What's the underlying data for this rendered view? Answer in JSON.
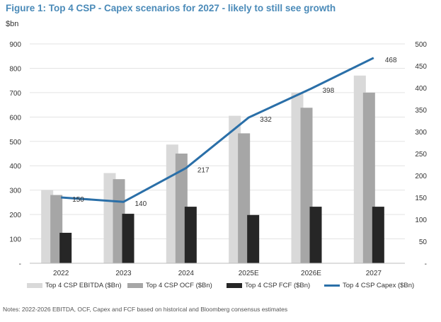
{
  "figure": {
    "title": "Figure 1: Top 4 CSP - Capex scenarios for 2027 - likely to still see growth",
    "unit_label": "$bn",
    "notes": "Notes: 2022-2026 EBITDA, OCF, Capex and FCF based on historical and Bloomberg consensus estimates"
  },
  "chart_data": {
    "type": "bar",
    "categories": [
      "2022",
      "2023",
      "2024",
      "2025E",
      "2026E",
      "2027"
    ],
    "series": [
      {
        "name": "Top 4 CSP EBITDA ($Bn)",
        "type": "bar",
        "axis": "left",
        "color": "#d9d9d9",
        "values": [
          300,
          370,
          487,
          605,
          700,
          770
        ]
      },
      {
        "name": "Top 4 CSP OCF ($Bn)",
        "type": "bar",
        "axis": "left",
        "color": "#a6a6a6",
        "values": [
          280,
          345,
          450,
          533,
          638,
          700
        ]
      },
      {
        "name": "Top 4 CSP FCF ($Bn)",
        "type": "bar",
        "axis": "left",
        "color": "#262626",
        "values": [
          125,
          203,
          232,
          198,
          232,
          232
        ]
      },
      {
        "name": "Top 4 CSP Capex ($Bn)",
        "type": "line",
        "axis": "right",
        "color": "#2a6fa8",
        "values": [
          150,
          140,
          217,
          332,
          398,
          468
        ]
      }
    ],
    "y_left": {
      "min": 0,
      "max": 900,
      "ticks": [
        0,
        100,
        200,
        300,
        400,
        500,
        600,
        700,
        800,
        900
      ],
      "tick_labels": [
        "-",
        "100",
        "200",
        "300",
        "400",
        "500",
        "600",
        "700",
        "800",
        "900"
      ]
    },
    "y_right": {
      "min": 0,
      "max": 500,
      "ticks": [
        0,
        50,
        100,
        150,
        200,
        250,
        300,
        350,
        400,
        450,
        500
      ],
      "tick_labels": [
        "-",
        "50",
        "100",
        "150",
        "200",
        "250",
        "300",
        "350",
        "400",
        "450",
        "500"
      ]
    },
    "data_labels": [
      "150",
      "140",
      "217",
      "332",
      "398",
      "468"
    ],
    "grid": true,
    "legend_position": "bottom"
  }
}
